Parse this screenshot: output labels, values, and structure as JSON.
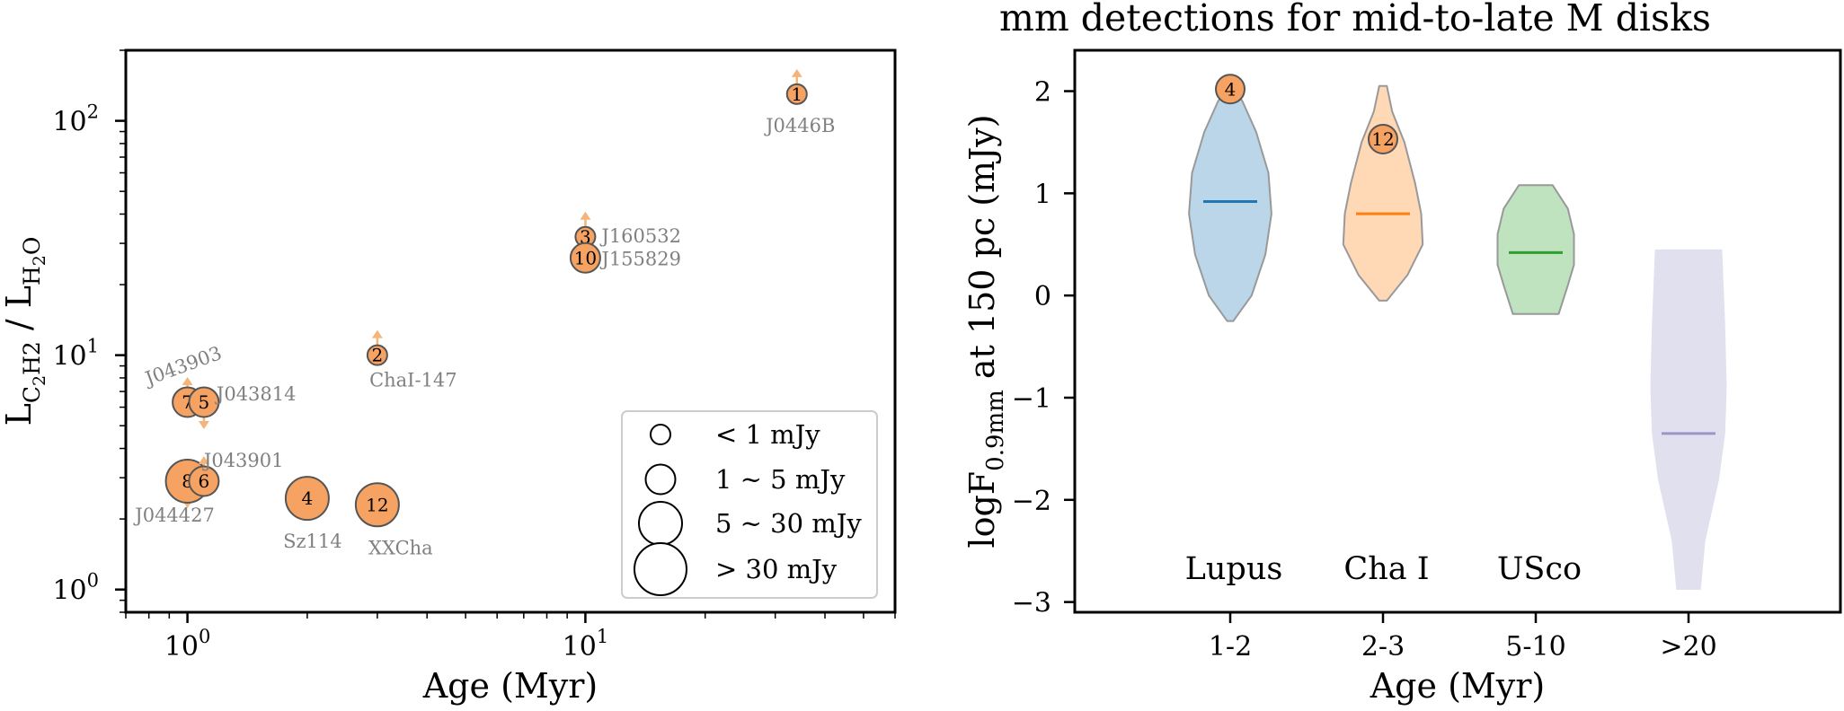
{
  "colors": {
    "marker_fill": "#f5a262",
    "marker_edge": "#555555",
    "arrow": "#f5b57a",
    "name_text": "#808080",
    "lupus": "#1f77b4",
    "chai": "#ff7f0e",
    "usco": "#2ca02c",
    "old": "#9a97c8"
  },
  "chart_data": [
    {
      "type": "scatter",
      "xlabel": "Age (Myr)",
      "ylabel": "L_C2H2 / L_H2O",
      "ylabel_main": "L",
      "ylabel_sub1": "C",
      "ylabel_sub1b": "2",
      "ylabel_sub1c": "H2",
      "ylabel_slash": " / L",
      "ylabel_sub2": "H",
      "ylabel_sub2b": "2",
      "ylabel_sub2c": "O",
      "xscale": "log",
      "yscale": "log",
      "xlim": [
        0.7,
        60
      ],
      "ylim": [
        0.8,
        200
      ],
      "xticks": [
        {
          "value": 1,
          "base": "10",
          "exp": "0"
        },
        {
          "value": 10,
          "base": "10",
          "exp": "1"
        }
      ],
      "yticks": [
        {
          "value": 1,
          "base": "10",
          "exp": "0"
        },
        {
          "value": 10,
          "base": "10",
          "exp": "1"
        },
        {
          "value": 100,
          "base": "10",
          "exp": "2"
        }
      ],
      "points": [
        {
          "id": "1",
          "name": "J0446B",
          "x": 34,
          "y": 130,
          "size": "<1",
          "arrow": "up"
        },
        {
          "id": "3",
          "name": "J160532",
          "x": 10,
          "y": 32,
          "size": "<1",
          "arrow": "up"
        },
        {
          "id": "10",
          "name": "J155829",
          "x": 10,
          "y": 26,
          "size": "1-5",
          "arrow": "none"
        },
        {
          "id": "2",
          "name": "ChaI-147",
          "x": 3,
          "y": 10,
          "size": "<1",
          "arrow": "up"
        },
        {
          "id": "7",
          "name": "J043903",
          "x": 1.0,
          "y": 6.3,
          "size": "1-5",
          "arrow": "up"
        },
        {
          "id": "5",
          "name": "J043814",
          "x": 1.1,
          "y": 6.3,
          "size": "1-5",
          "arrow": "down"
        },
        {
          "id": "8",
          "name": "J044427",
          "x": 1.0,
          "y": 2.9,
          "size": "5-30",
          "arrow": "down"
        },
        {
          "id": "6",
          "name": "J043901",
          "x": 1.1,
          "y": 2.9,
          "size": "1-5",
          "arrow": "up"
        },
        {
          "id": "4",
          "name": "Sz114",
          "x": 2.0,
          "y": 2.45,
          "size": "5-30",
          "arrow": "none"
        },
        {
          "id": "12",
          "name": "XXCha",
          "x": 3.0,
          "y": 2.3,
          "size": "5-30",
          "arrow": "none"
        }
      ],
      "legend": {
        "placement": "lower-right",
        "entries": [
          {
            "label": "< 1 mJy",
            "size": "<1"
          },
          {
            "label": "1 ~ 5 mJy",
            "size": "1-5"
          },
          {
            "label": "5 ~ 30 mJy",
            "size": "5-30"
          },
          {
            "label": "> 30 mJy",
            "size": ">30"
          }
        ]
      }
    },
    {
      "type": "violin",
      "title": "mm detections for mid-to-late M disks",
      "xlabel": "Age (Myr)",
      "ylabel_pre": "logF",
      "ylabel_sub": "0.9mm",
      "ylabel_post": " at 150 pc (mJy)",
      "ylim": [
        -3.1,
        2.4
      ],
      "yticks": [
        {
          "value": -3,
          "label": "−3"
        },
        {
          "value": -2,
          "label": "−2"
        },
        {
          "value": -1,
          "label": "−1"
        },
        {
          "value": 0,
          "label": "0"
        },
        {
          "value": 1,
          "label": "1"
        },
        {
          "value": 2,
          "label": "2"
        }
      ],
      "categories": [
        "1-2",
        "2-3",
        "5-10",
        ">20"
      ],
      "regions": [
        "Lupus",
        "Cha I",
        "USco",
        ""
      ],
      "violins": [
        {
          "category": "1-2",
          "min": -0.25,
          "max": 2.05,
          "median": 0.92,
          "color_key": "lupus",
          "profile": [
            [
              -0.25,
              0.04
            ],
            [
              0,
              0.28
            ],
            [
              0.4,
              0.46
            ],
            [
              0.8,
              0.54
            ],
            [
              1.2,
              0.5
            ],
            [
              1.6,
              0.34
            ],
            [
              1.9,
              0.16
            ],
            [
              2.05,
              0.03
            ]
          ]
        },
        {
          "category": "2-3",
          "min": -0.05,
          "max": 2.05,
          "median": 0.8,
          "color_key": "chai",
          "profile": [
            [
              -0.05,
              0.05
            ],
            [
              0.2,
              0.32
            ],
            [
              0.5,
              0.52
            ],
            [
              0.8,
              0.5
            ],
            [
              1.1,
              0.42
            ],
            [
              1.5,
              0.28
            ],
            [
              1.8,
              0.12
            ],
            [
              2.05,
              0.05
            ]
          ]
        },
        {
          "category": "5-10",
          "min": -0.18,
          "max": 1.08,
          "median": 0.42,
          "color_key": "usco",
          "profile": [
            [
              -0.18,
              0.3
            ],
            [
              0.1,
              0.42
            ],
            [
              0.3,
              0.5
            ],
            [
              0.6,
              0.5
            ],
            [
              0.85,
              0.42
            ],
            [
              1.08,
              0.22
            ]
          ]
        },
        {
          "category": ">20",
          "min": -2.88,
          "max": 0.45,
          "median": -1.35,
          "color_key": "old",
          "profile": [
            [
              -2.88,
              0.16
            ],
            [
              -2.4,
              0.22
            ],
            [
              -1.8,
              0.4
            ],
            [
              -1.35,
              0.48
            ],
            [
              -0.9,
              0.5
            ],
            [
              -0.3,
              0.48
            ],
            [
              0.45,
              0.44
            ]
          ]
        }
      ],
      "markers": [
        {
          "id": "4",
          "category": "1-2",
          "y": 2.02
        },
        {
          "id": "12",
          "category": "2-3",
          "y": 1.53
        }
      ]
    }
  ]
}
